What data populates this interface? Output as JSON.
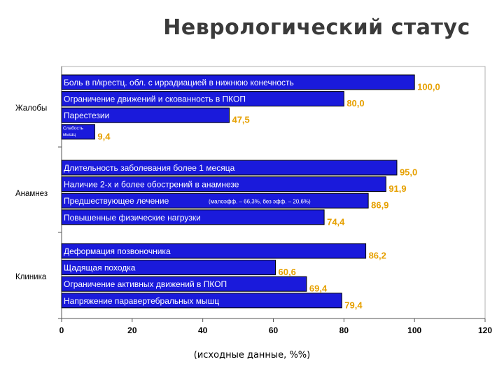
{
  "title": "Неврологический статус",
  "caption": "(исходные данные, %%)",
  "chart_data": {
    "type": "bar",
    "orientation": "horizontal",
    "groups": [
      {
        "label": "Жалобы",
        "bars": [
          {
            "label": "Боль в п/крестц. обл. с иррадиацией в нижнюю конечность",
            "value": 100.0,
            "value_label": "100,0"
          },
          {
            "label": "Ограничение движений и скованность в ПКОП",
            "value": 80.0,
            "value_label": "80,0"
          },
          {
            "label": "Парестезии",
            "value": 47.5,
            "value_label": "47,5"
          },
          {
            "label": "Слабость мышц",
            "value": 9.4,
            "value_label": "9,4"
          }
        ]
      },
      {
        "label": "Анамнез",
        "bars": [
          {
            "label": "Длительность заболевания более 1 месяца",
            "value": 95.0,
            "value_label": "95,0"
          },
          {
            "label": "Наличие 2-х и более обострений в анамнезе",
            "value": 91.9,
            "value_label": "91,9"
          },
          {
            "label": "Предшествующее лечение",
            "value": 86.9,
            "value_label": "86,9",
            "note": "(малоэфф. – 66,3%, без эфф. – 20,6%)"
          },
          {
            "label": "Повышенные физические нагрузки",
            "value": 74.4,
            "value_label": "74,4"
          }
        ]
      },
      {
        "label": "Клиника",
        "bars": [
          {
            "label": "Деформация позвоночника",
            "value": 86.2,
            "value_label": "86,2"
          },
          {
            "label": "Щадящая походка",
            "value": 60.6,
            "value_label": "60,6"
          },
          {
            "label": "Ограничение активных движений в ПКОП",
            "value": 69.4,
            "value_label": "69,4"
          },
          {
            "label": "Напряжение паравертебральных мышц",
            "value": 79.4,
            "value_label": "79,4"
          }
        ]
      }
    ],
    "xlim": [
      0,
      120
    ],
    "xticks": [
      "0",
      "20",
      "40",
      "60",
      "80",
      "100",
      "120"
    ],
    "grid": false,
    "colors": {
      "bar": "#1a1adb",
      "bar_border": "#000000",
      "value_label": "#e6a000",
      "bar_text": "#ffffff"
    }
  }
}
